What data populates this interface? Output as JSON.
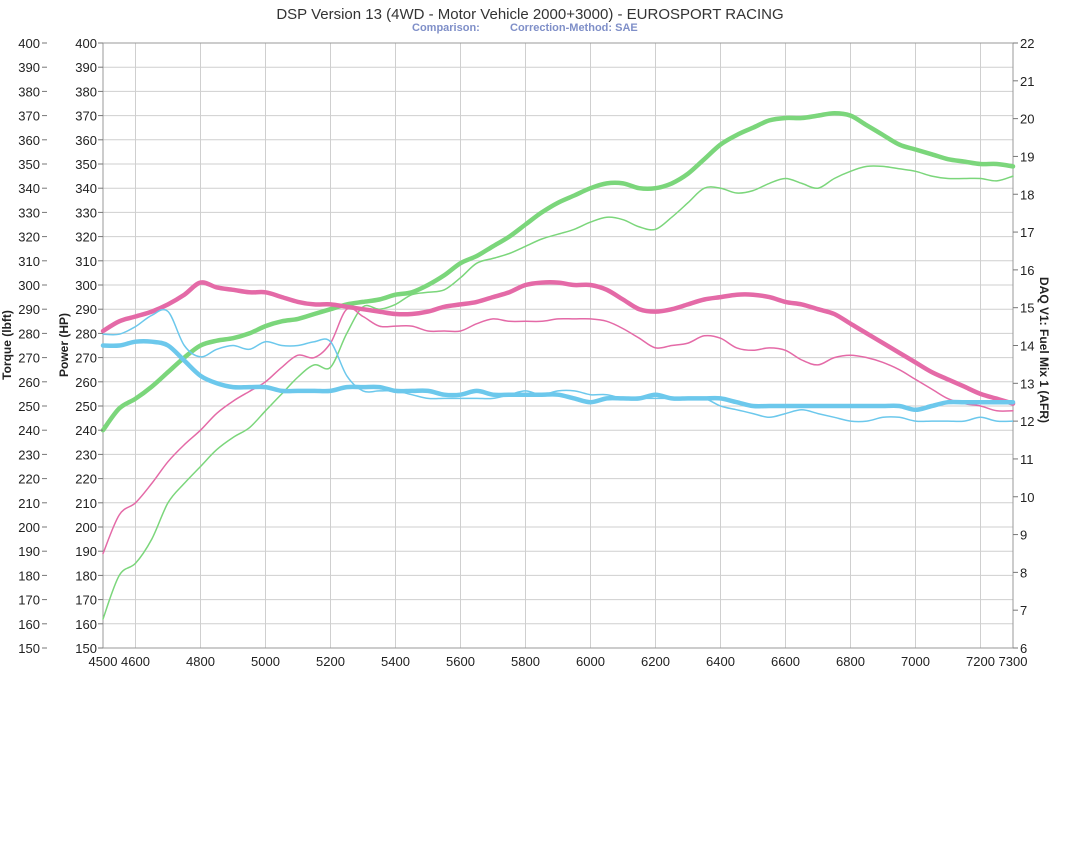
{
  "chart_data": {
    "type": "line",
    "title": "DSP Version 13 (4WD - Motor Vehicle 2000+3000) - EUROSPORT RACING",
    "subtitle_comparison": "Comparison:",
    "subtitle_correction": "Correction-Method: SAE",
    "xlabel": "",
    "ylabel_torque": "Torque (lbft)",
    "ylabel_power": "Power (HP)",
    "ylabel_afr": "DAQ V1: Fuel Mix 1 (AFR)",
    "xlim": [
      4500,
      7300
    ],
    "ylim": [
      150,
      400
    ],
    "ylim_afr": [
      6,
      22
    ],
    "x_ticks": [
      4500,
      4600,
      4800,
      5000,
      5200,
      5400,
      5600,
      5800,
      6000,
      6200,
      6400,
      6600,
      6800,
      7000,
      7200,
      7300
    ],
    "y_ticks": [
      150,
      160,
      170,
      180,
      190,
      200,
      210,
      220,
      230,
      240,
      250,
      260,
      270,
      280,
      290,
      300,
      310,
      320,
      330,
      340,
      350,
      360,
      370,
      380,
      390,
      400
    ],
    "afr_ticks": [
      6,
      7,
      8,
      9,
      10,
      11,
      12,
      13,
      14,
      15,
      16,
      17,
      18,
      19,
      20,
      21,
      22
    ],
    "grid": true,
    "colors": {
      "power": "#7bd67b",
      "torque": "#e46aa7",
      "afr": "#6cc8ec"
    },
    "series": [
      {
        "axis": "left",
        "color": "#7bd67b",
        "width": 4.5,
        "x": [
          4500,
          4550,
          4600,
          4650,
          4700,
          4750,
          4800,
          4850,
          4900,
          4950,
          5000,
          5050,
          5100,
          5150,
          5200,
          5250,
          5300,
          5350,
          5400,
          5450,
          5500,
          5550,
          5600,
          5650,
          5700,
          5750,
          5800,
          5850,
          5900,
          5950,
          6000,
          6050,
          6100,
          6150,
          6200,
          6250,
          6300,
          6350,
          6400,
          6450,
          6500,
          6550,
          6600,
          6650,
          6700,
          6750,
          6800,
          6850,
          6900,
          6950,
          7000,
          7050,
          7100,
          7150,
          7200,
          7250,
          7300
        ],
        "y": [
          240,
          249,
          253,
          258,
          264,
          270,
          275,
          277,
          278,
          280,
          283,
          285,
          286,
          288,
          290,
          292,
          293,
          294,
          296,
          297,
          300,
          304,
          309,
          312,
          316,
          320,
          325,
          330,
          334,
          337,
          340,
          342,
          342,
          340,
          340,
          342,
          346,
          352,
          358,
          362,
          365,
          368,
          369,
          369,
          370,
          371,
          370,
          366,
          362,
          358,
          356,
          354,
          352,
          351,
          350,
          350,
          349
        ]
      },
      {
        "axis": "left",
        "color": "#7bd67b",
        "width": 1.5,
        "x": [
          4500,
          4550,
          4600,
          4650,
          4700,
          4750,
          4800,
          4850,
          4900,
          4950,
          5000,
          5050,
          5100,
          5150,
          5200,
          5250,
          5300,
          5350,
          5400,
          5450,
          5500,
          5550,
          5600,
          5650,
          5700,
          5750,
          5800,
          5850,
          5900,
          5950,
          6000,
          6050,
          6100,
          6150,
          6200,
          6250,
          6300,
          6350,
          6400,
          6450,
          6500,
          6550,
          6600,
          6650,
          6700,
          6750,
          6800,
          6850,
          6900,
          6950,
          7000,
          7050,
          7100,
          7150,
          7200,
          7250,
          7300
        ],
        "y": [
          162,
          180,
          185,
          195,
          210,
          218,
          225,
          232,
          237,
          241,
          248,
          255,
          262,
          267,
          266,
          280,
          291,
          290,
          292,
          296,
          297,
          298,
          303,
          309,
          311,
          313,
          316,
          319,
          321,
          323,
          326,
          328,
          327,
          324,
          323,
          328,
          334,
          340,
          340,
          338,
          339,
          342,
          344,
          342,
          340,
          344,
          347,
          349,
          349,
          348,
          347,
          345,
          344,
          344,
          344,
          343,
          345
        ]
      },
      {
        "axis": "left",
        "color": "#e46aa7",
        "width": 4.5,
        "x": [
          4500,
          4550,
          4600,
          4650,
          4700,
          4750,
          4800,
          4850,
          4900,
          4950,
          5000,
          5050,
          5100,
          5150,
          5200,
          5250,
          5300,
          5350,
          5400,
          5450,
          5500,
          5550,
          5600,
          5650,
          5700,
          5750,
          5800,
          5850,
          5900,
          5950,
          6000,
          6050,
          6100,
          6150,
          6200,
          6250,
          6300,
          6350,
          6400,
          6450,
          6500,
          6550,
          6600,
          6650,
          6700,
          6750,
          6800,
          6850,
          6900,
          6950,
          7000,
          7050,
          7100,
          7150,
          7200,
          7250,
          7300
        ],
        "y": [
          281,
          285,
          287,
          289,
          292,
          296,
          301,
          299,
          298,
          297,
          297,
          295,
          293,
          292,
          292,
          291,
          290,
          289,
          288,
          288,
          289,
          291,
          292,
          293,
          295,
          297,
          300,
          301,
          301,
          300,
          300,
          298,
          294,
          290,
          289,
          290,
          292,
          294,
          295,
          296,
          296,
          295,
          293,
          292,
          290,
          288,
          284,
          280,
          276,
          272,
          268,
          264,
          261,
          258,
          255,
          253,
          251
        ]
      },
      {
        "axis": "left",
        "color": "#e46aa7",
        "width": 1.5,
        "x": [
          4500,
          4550,
          4600,
          4650,
          4700,
          4750,
          4800,
          4850,
          4900,
          4950,
          5000,
          5050,
          5100,
          5150,
          5200,
          5250,
          5300,
          5350,
          5400,
          5450,
          5500,
          5550,
          5600,
          5650,
          5700,
          5750,
          5800,
          5850,
          5900,
          5950,
          6000,
          6050,
          6100,
          6150,
          6200,
          6250,
          6300,
          6350,
          6400,
          6450,
          6500,
          6550,
          6600,
          6650,
          6700,
          6750,
          6800,
          6850,
          6900,
          6950,
          7000,
          7050,
          7100,
          7150,
          7200,
          7250,
          7300
        ],
        "y": [
          189,
          205,
          210,
          218,
          227,
          234,
          240,
          247,
          252,
          256,
          260,
          266,
          271,
          270,
          276,
          290,
          287,
          283,
          283,
          283,
          281,
          281,
          281,
          284,
          286,
          285,
          285,
          285,
          286,
          286,
          286,
          285,
          282,
          278,
          274,
          275,
          276,
          279,
          278,
          274,
          273,
          274,
          273,
          269,
          267,
          270,
          271,
          270,
          268,
          265,
          261,
          257,
          253,
          251,
          250,
          248,
          248
        ]
      },
      {
        "axis": "right",
        "color": "#6cc8ec",
        "width": 4.5,
        "x": [
          4500,
          4550,
          4600,
          4650,
          4700,
          4750,
          4800,
          4850,
          4900,
          4950,
          5000,
          5050,
          5100,
          5150,
          5200,
          5250,
          5300,
          5350,
          5400,
          5450,
          5500,
          5550,
          5600,
          5650,
          5700,
          5750,
          5800,
          5850,
          5900,
          5950,
          6000,
          6050,
          6100,
          6150,
          6200,
          6250,
          6300,
          6350,
          6400,
          6450,
          6500,
          6550,
          6600,
          6650,
          6700,
          6750,
          6800,
          6850,
          6900,
          6950,
          7000,
          7050,
          7100,
          7150,
          7200,
          7250,
          7300
        ],
        "y": [
          14.0,
          14.0,
          14.1,
          14.1,
          14.0,
          13.6,
          13.2,
          13.0,
          12.9,
          12.9,
          12.9,
          12.8,
          12.8,
          12.8,
          12.8,
          12.9,
          12.9,
          12.9,
          12.8,
          12.8,
          12.8,
          12.7,
          12.7,
          12.8,
          12.7,
          12.7,
          12.7,
          12.7,
          12.7,
          12.6,
          12.5,
          12.6,
          12.6,
          12.6,
          12.7,
          12.6,
          12.6,
          12.6,
          12.6,
          12.5,
          12.4,
          12.4,
          12.4,
          12.4,
          12.4,
          12.4,
          12.4,
          12.4,
          12.4,
          12.4,
          12.3,
          12.4,
          12.5,
          12.5,
          12.5,
          12.5,
          12.5
        ]
      },
      {
        "axis": "right",
        "color": "#6cc8ec",
        "width": 1.5,
        "x": [
          4500,
          4550,
          4600,
          4650,
          4700,
          4750,
          4800,
          4850,
          4900,
          4950,
          5000,
          5050,
          5100,
          5150,
          5200,
          5250,
          5300,
          5350,
          5400,
          5450,
          5500,
          5550,
          5600,
          5650,
          5700,
          5750,
          5800,
          5850,
          5900,
          5950,
          6000,
          6050,
          6100,
          6150,
          6200,
          6250,
          6300,
          6350,
          6400,
          6450,
          6500,
          6550,
          6600,
          6650,
          6700,
          6750,
          6800,
          6850,
          6900,
          6950,
          7000,
          7050,
          7100,
          7150,
          7200,
          7250,
          7300
        ],
        "y": [
          14.3,
          14.3,
          14.5,
          14.8,
          14.9,
          14.0,
          13.7,
          13.9,
          14.0,
          13.9,
          14.1,
          14.0,
          14.0,
          14.1,
          14.1,
          13.2,
          12.8,
          12.8,
          12.8,
          12.7,
          12.6,
          12.6,
          12.6,
          12.6,
          12.6,
          12.7,
          12.8,
          12.7,
          12.8,
          12.8,
          12.7,
          12.7,
          12.6,
          12.6,
          12.6,
          12.6,
          12.6,
          12.6,
          12.4,
          12.3,
          12.2,
          12.1,
          12.2,
          12.3,
          12.2,
          12.1,
          12.0,
          12.0,
          12.1,
          12.1,
          12.0,
          12.0,
          12.0,
          12.0,
          12.1,
          12.0,
          12.0
        ]
      }
    ]
  }
}
